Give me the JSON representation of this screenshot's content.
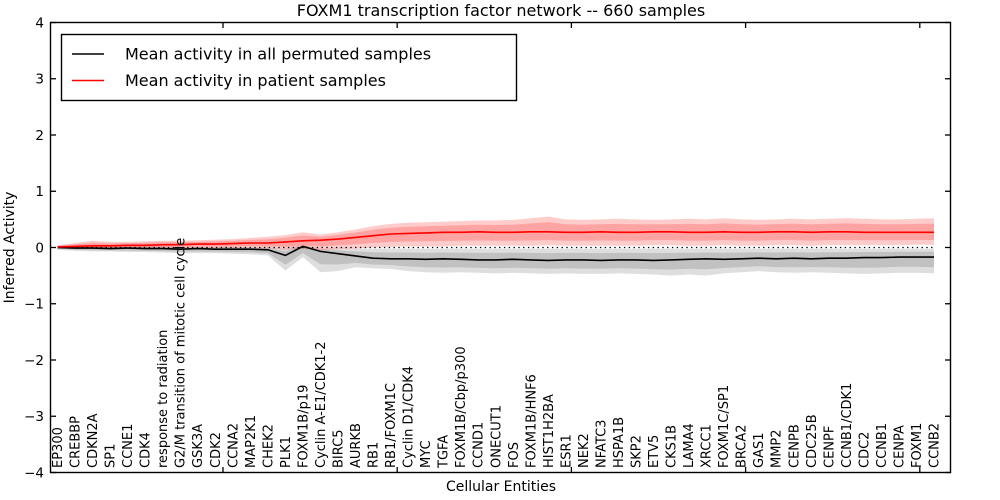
{
  "figure": {
    "title": "FOXM1 transcription factor network -- 660 samples",
    "xlabel": "Cellular Entities",
    "ylabel": "Inferred Activity"
  },
  "legend": {
    "position": "upper left",
    "entries": [
      {
        "label": "Mean activity in all permuted samples",
        "color": "#000000"
      },
      {
        "label": "Mean activity in patient samples",
        "color": "#ff0000"
      }
    ]
  },
  "chart_data": {
    "type": "line",
    "title": "FOXM1 transcription factor network -- 660 samples",
    "xlabel": "Cellular Entities",
    "ylabel": "Inferred Activity",
    "ylim": [
      -4,
      4
    ],
    "yticks": [
      -4,
      -3,
      -2,
      -1,
      0,
      1,
      2,
      3,
      4
    ],
    "grid": false,
    "legend_position": "upper left",
    "zero_line": {
      "y": 0,
      "style": "dotted",
      "color": "#000000"
    },
    "categories": [
      "EP300",
      "CREBBP",
      "CDKN2A",
      "SP1",
      "CCNE1",
      "CDK4",
      "response to radiation",
      "G2/M transition of mitotic cell cycle",
      "GSK3A",
      "CDK2",
      "CCNA2",
      "MAP2K1",
      "CHEK2",
      "PLK1",
      "FOXM1B/p19",
      "Cyclin A-E1/CDK1-2",
      "BIRC5",
      "AURKB",
      "RB1",
      "RB1/FOXM1C",
      "Cyclin D1/CDK4",
      "MYC",
      "TGFA",
      "FOXM1B/Cbp/p300",
      "CCND1",
      "ONECUT1",
      "FOS",
      "FOXM1B/HNF6",
      "HIST1H2BA",
      "ESR1",
      "NEK2",
      "NFATC3",
      "HSPA1B",
      "SKP2",
      "ETV5",
      "CKS1B",
      "LAMA4",
      "XRCC1",
      "FOXM1C/SP1",
      "BRCA2",
      "GAS1",
      "MMP2",
      "CENPB",
      "CDC25B",
      "CENPF",
      "CCNB1/CDK1",
      "CDC2",
      "CCNB1",
      "CENPA",
      "FOXM1",
      "CCNB2"
    ],
    "series": [
      {
        "name": "Mean activity in all permuted samples",
        "color": "#000000",
        "band_color": "#000000",
        "band_alpha": 0.13,
        "values": [
          0.0,
          -0.01,
          -0.01,
          -0.02,
          -0.01,
          -0.02,
          -0.02,
          -0.03,
          -0.02,
          -0.03,
          -0.03,
          -0.03,
          -0.04,
          -0.14,
          0.02,
          -0.07,
          -0.11,
          -0.15,
          -0.19,
          -0.2,
          -0.2,
          -0.21,
          -0.2,
          -0.21,
          -0.22,
          -0.22,
          -0.21,
          -0.22,
          -0.23,
          -0.22,
          -0.22,
          -0.23,
          -0.22,
          -0.22,
          -0.23,
          -0.22,
          -0.21,
          -0.2,
          -0.21,
          -0.2,
          -0.19,
          -0.2,
          -0.19,
          -0.2,
          -0.19,
          -0.19,
          -0.18,
          -0.18,
          -0.17,
          -0.17,
          -0.17
        ],
        "band_lo": [
          -0.04,
          -0.06,
          -0.07,
          -0.07,
          -0.08,
          -0.08,
          -0.09,
          -0.1,
          -0.1,
          -0.1,
          -0.11,
          -0.12,
          -0.14,
          -0.41,
          -0.17,
          -0.44,
          -0.42,
          -0.35,
          -0.37,
          -0.38,
          -0.42,
          -0.44,
          -0.45,
          -0.44,
          -0.45,
          -0.46,
          -0.45,
          -0.46,
          -0.47,
          -0.46,
          -0.47,
          -0.47,
          -0.46,
          -0.47,
          -0.48,
          -0.5,
          -0.48,
          -0.5,
          -0.46,
          -0.44,
          -0.42,
          -0.44,
          -0.45,
          -0.44,
          -0.45,
          -0.46,
          -0.47,
          -0.46,
          -0.45,
          -0.45,
          -0.46
        ],
        "band_hi": [
          0.03,
          0.03,
          0.02,
          0.02,
          0.02,
          0.02,
          0.02,
          0.01,
          0.01,
          0.01,
          0.01,
          0.0,
          0.0,
          -0.02,
          0.04,
          -0.02,
          -0.02,
          -0.02,
          -0.02,
          -0.02,
          -0.02,
          -0.02,
          -0.02,
          -0.02,
          -0.02,
          -0.02,
          -0.02,
          -0.02,
          -0.02,
          -0.02,
          -0.02,
          -0.02,
          -0.02,
          -0.02,
          -0.02,
          -0.02,
          -0.02,
          -0.02,
          -0.02,
          -0.02,
          -0.02,
          -0.02,
          -0.02,
          -0.02,
          -0.02,
          -0.02,
          -0.02,
          -0.02,
          -0.02,
          -0.02,
          -0.02
        ]
      },
      {
        "name": "Mean activity in patient samples",
        "color": "#ff0000",
        "band_color": "#ff0000",
        "band_alpha": 0.2,
        "values": [
          0.01,
          0.02,
          0.03,
          0.03,
          0.04,
          0.04,
          0.05,
          0.05,
          0.06,
          0.06,
          0.07,
          0.08,
          0.08,
          0.1,
          0.12,
          0.13,
          0.15,
          0.18,
          0.21,
          0.24,
          0.25,
          0.26,
          0.27,
          0.27,
          0.28,
          0.27,
          0.27,
          0.28,
          0.28,
          0.27,
          0.27,
          0.28,
          0.27,
          0.27,
          0.28,
          0.28,
          0.27,
          0.27,
          0.28,
          0.27,
          0.27,
          0.28,
          0.28,
          0.27,
          0.28,
          0.28,
          0.27,
          0.27,
          0.27,
          0.27,
          0.27
        ],
        "band_lo": [
          -0.02,
          -0.02,
          -0.02,
          -0.01,
          -0.01,
          -0.01,
          -0.01,
          -0.01,
          -0.01,
          -0.01,
          -0.01,
          -0.01,
          -0.02,
          -0.04,
          -0.02,
          -0.05,
          -0.03,
          -0.02,
          0.0,
          0.01,
          0.02,
          0.02,
          0.02,
          0.03,
          0.03,
          0.03,
          0.03,
          0.03,
          0.04,
          0.03,
          0.03,
          0.03,
          0.03,
          0.03,
          0.04,
          0.04,
          0.03,
          0.03,
          0.04,
          0.03,
          0.03,
          0.04,
          0.04,
          0.03,
          0.04,
          0.04,
          0.04,
          0.04,
          0.04,
          0.05,
          0.05
        ],
        "band_hi": [
          0.04,
          0.08,
          0.12,
          0.1,
          0.1,
          0.11,
          0.12,
          0.12,
          0.13,
          0.14,
          0.15,
          0.17,
          0.19,
          0.22,
          0.27,
          0.23,
          0.27,
          0.32,
          0.38,
          0.42,
          0.44,
          0.45,
          0.46,
          0.47,
          0.48,
          0.48,
          0.49,
          0.52,
          0.55,
          0.5,
          0.49,
          0.5,
          0.51,
          0.5,
          0.49,
          0.5,
          0.51,
          0.5,
          0.52,
          0.5,
          0.49,
          0.5,
          0.51,
          0.5,
          0.51,
          0.52,
          0.51,
          0.5,
          0.5,
          0.51,
          0.52
        ]
      }
    ]
  }
}
